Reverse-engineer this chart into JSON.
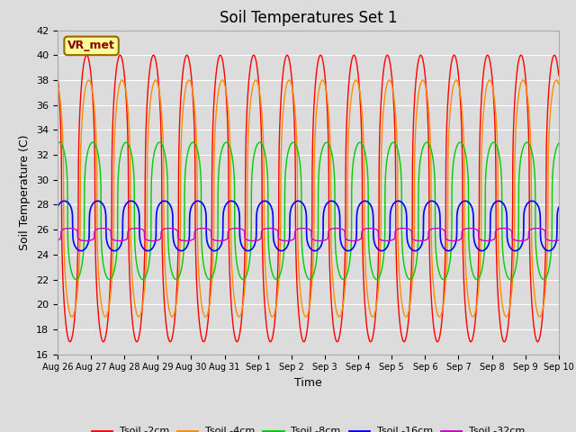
{
  "title": "Soil Temperatures Set 1",
  "xlabel": "Time",
  "ylabel": "Soil Temperature (C)",
  "ylim": [
    16,
    42
  ],
  "yticks": [
    16,
    18,
    20,
    22,
    24,
    26,
    28,
    30,
    32,
    34,
    36,
    38,
    40,
    42
  ],
  "tick_labels": [
    "Aug 26",
    "Aug 27",
    "Aug 28",
    "Aug 29",
    "Aug 30",
    "Aug 31",
    "Sep 1",
    "Sep 2",
    "Sep 3",
    "Sep 4",
    "Sep 5",
    "Sep 6",
    "Sep 7",
    "Sep 8",
    "Sep 9",
    "Sep 10"
  ],
  "colors": {
    "Tsoil -2cm": "#ff0000",
    "Tsoil -4cm": "#ff8c00",
    "Tsoil -8cm": "#00cc00",
    "Tsoil -16cm": "#0000ff",
    "Tsoil -32cm": "#cc00cc"
  },
  "bg_color": "#dcdcdc",
  "plot_bg_color": "#dcdcdc",
  "grid_color": "#ffffff",
  "annotation_text": "VR_met",
  "annotation_bg": "#ffff99",
  "annotation_border": "#996600",
  "annotation_text_color": "#8B0000"
}
